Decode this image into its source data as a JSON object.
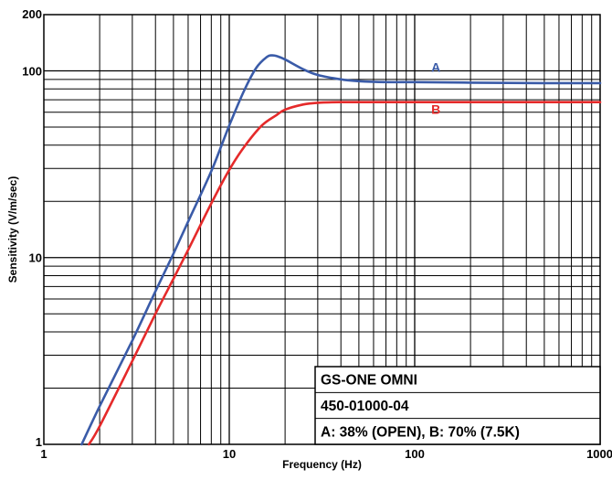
{
  "chart_data": {
    "type": "line",
    "title": "",
    "xlabel": "Frequency (Hz)",
    "ylabel": "Sensitivity (V/m/sec)",
    "xscale": "log",
    "yscale": "log",
    "xlim": [
      1,
      1000
    ],
    "ylim": [
      1,
      200
    ],
    "grid": true,
    "x_ticks": [
      {
        "value": 1,
        "label": "1"
      },
      {
        "value": 10,
        "label": "10"
      },
      {
        "value": 100,
        "label": "100"
      },
      {
        "value": 1000,
        "label": "1000"
      }
    ],
    "y_ticks": [
      {
        "value": 1,
        "label": "1"
      },
      {
        "value": 10,
        "label": "10"
      },
      {
        "value": 100,
        "label": "100"
      },
      {
        "value": 200,
        "label": "200"
      }
    ],
    "series": [
      {
        "name": "A",
        "color": "#3a5ba8",
        "x": [
          1.6,
          2,
          3,
          4,
          5,
          6,
          8,
          10,
          12,
          14,
          16,
          17,
          18,
          20,
          25,
          30,
          40,
          50,
          70,
          100,
          200,
          500,
          1000
        ],
        "y": [
          1,
          1.6,
          3.6,
          6.6,
          10.5,
          15.6,
          29,
          51,
          78,
          104,
          119,
          121,
          120,
          115,
          102,
          95,
          90,
          88,
          87,
          87,
          86.5,
          86,
          86
        ]
      },
      {
        "name": "B",
        "color": "#e52a2a",
        "x": [
          1.75,
          2,
          3,
          4,
          5,
          6,
          8,
          10,
          12,
          15,
          18,
          20,
          25,
          30,
          40,
          50,
          100,
          200,
          500,
          1000
        ],
        "y": [
          1,
          1.25,
          2.8,
          5,
          7.7,
          11,
          19.5,
          29.5,
          39,
          51,
          58,
          62,
          66,
          67.5,
          68,
          68,
          68,
          68,
          68,
          68
        ]
      }
    ],
    "legend": {
      "placement": "bottom-right",
      "lines": [
        "GS-ONE OMNI",
        "450-01000-04",
        "A: 38% (OPEN),  B: 70% (7.5K)"
      ]
    },
    "annotations": [
      {
        "text": "A",
        "x": 130,
        "y": 99,
        "color": "#3a5ba8"
      },
      {
        "text": "B",
        "x": 130,
        "y": 59,
        "color": "#e52a2a"
      }
    ]
  }
}
